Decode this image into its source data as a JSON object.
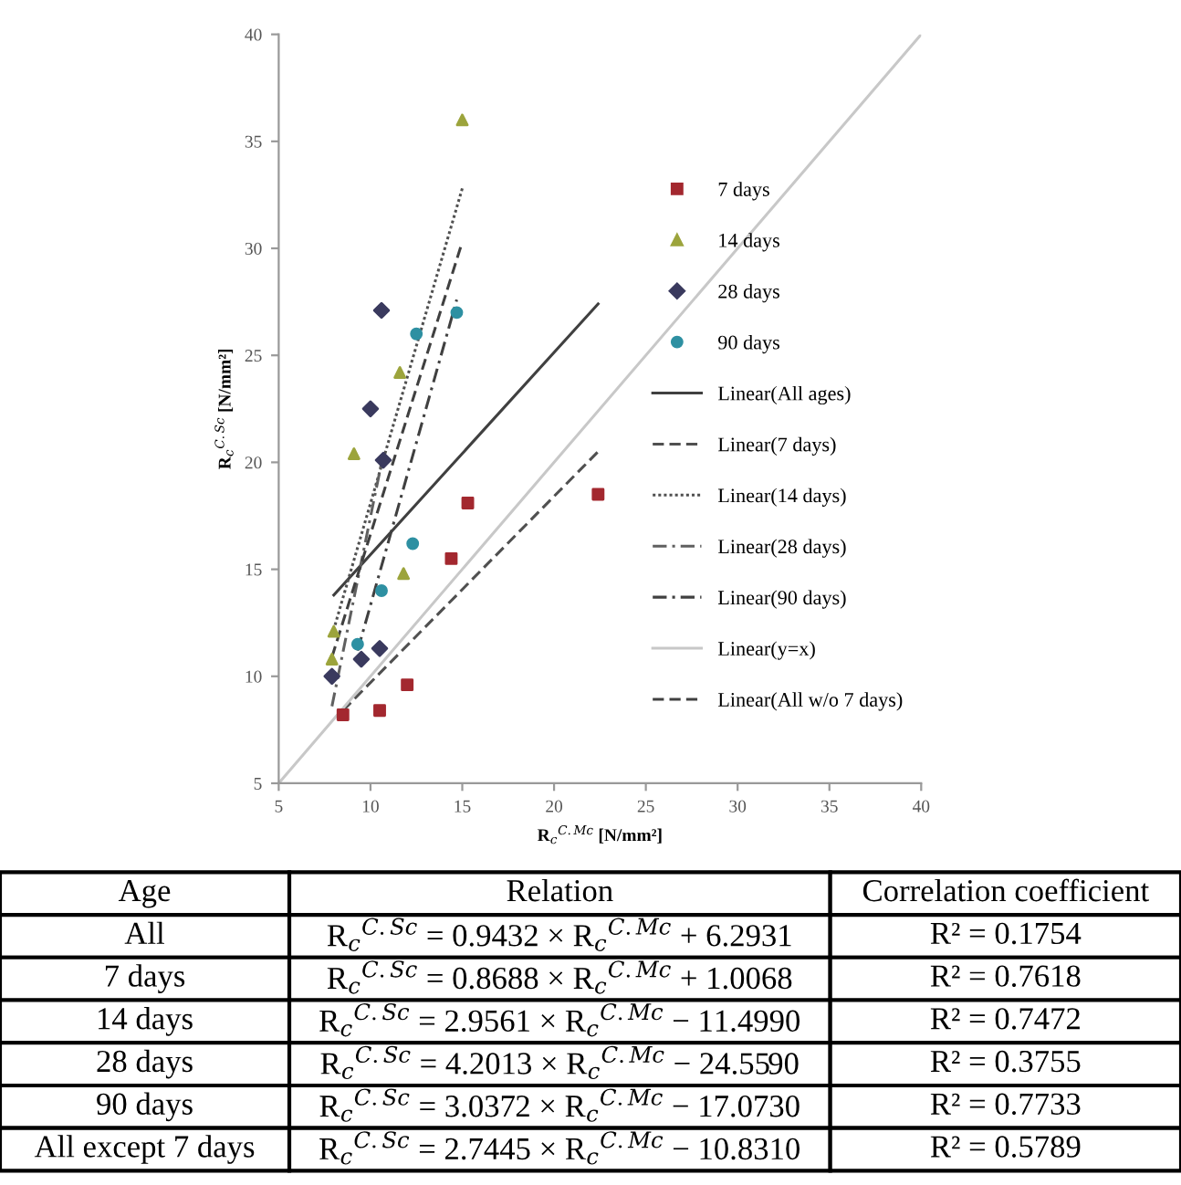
{
  "chart_data": {
    "type": "scatter",
    "xlabel": "R$_{c}$$^{C.Mc}$ [N/mm²]",
    "ylabel": "R$_{c}$$^{C.Sc}$ [N/mm²]",
    "xlim": [
      5,
      40
    ],
    "ylim": [
      5,
      40
    ],
    "xticks": [
      5,
      10,
      15,
      20,
      25,
      30,
      35,
      40
    ],
    "yticks": [
      5,
      10,
      15,
      20,
      25,
      30,
      35,
      40
    ],
    "grid": false,
    "legend": "right",
    "series": [
      {
        "name": "7 days",
        "type": "scatter",
        "marker": "square",
        "color": "#a3282f",
        "x": [
          8.5,
          10.5,
          12.0,
          14.4,
          15.3,
          22.4
        ],
        "values": [
          8.2,
          8.4,
          9.6,
          15.5,
          18.1,
          18.5
        ]
      },
      {
        "name": "14 days",
        "type": "scatter",
        "marker": "triangle",
        "color": "#9ca43c",
        "x": [
          15.0,
          11.6,
          9.1,
          11.8,
          8.0,
          7.9
        ],
        "values": [
          36.0,
          24.2,
          20.4,
          14.8,
          12.1,
          10.8
        ]
      },
      {
        "name": "28 days",
        "type": "scatter",
        "marker": "diamond",
        "color": "#3a3a5e",
        "x": [
          10.6,
          10.0,
          10.7,
          10.5,
          9.5,
          7.9
        ],
        "values": [
          27.1,
          22.5,
          20.1,
          11.3,
          10.8,
          10.0
        ]
      },
      {
        "name": "90 days",
        "type": "scatter",
        "marker": "circle",
        "color": "#2e90a2",
        "x": [
          12.5,
          14.7,
          12.3,
          10.6,
          9.3
        ],
        "values": [
          26.0,
          27.0,
          16.2,
          14.0,
          11.5
        ]
      },
      {
        "name": "Linear(All ages)",
        "type": "line",
        "line_style": "solid",
        "color": "#404040",
        "x": [
          8.0,
          22.4
        ],
        "values": [
          13.8,
          27.4
        ]
      },
      {
        "name": "Linear(7 days)",
        "type": "line",
        "line_style": "dashed",
        "color": "#505050",
        "x": [
          8.5,
          22.4
        ],
        "values": [
          8.4,
          20.5
        ]
      },
      {
        "name": "Linear(14 days)",
        "type": "line",
        "line_style": "dotted",
        "color": "#505050",
        "x": [
          7.9,
          15.0
        ],
        "values": [
          11.9,
          32.8
        ]
      },
      {
        "name": "Linear(28 days)",
        "type": "line",
        "line_style": "dashdot",
        "color": "#606060",
        "x": [
          7.9,
          10.7
        ],
        "values": [
          8.6,
          20.4
        ]
      },
      {
        "name": "Linear(90 days)",
        "type": "line",
        "line_style": "dashdot",
        "color": "#404040",
        "x": [
          9.3,
          14.7
        ],
        "values": [
          11.2,
          27.6
        ]
      },
      {
        "name": "Linear(y=x)",
        "type": "line",
        "line_style": "solid",
        "color": "#c8c8c8",
        "x": [
          5,
          40
        ],
        "values": [
          5,
          40
        ]
      },
      {
        "name": "Linear(All w/o 7 days)",
        "type": "line",
        "line_style": "dashed",
        "color": "#404040",
        "x": [
          7.9,
          15.0
        ],
        "values": [
          10.9,
          30.3
        ]
      }
    ],
    "annotations": [
      "Age",
      "Relation",
      "Correlation coefficient",
      "All",
      "R$_{c}$$^{C.Sc}$ = 0.9432 × R$_{c}$$^{C.Mc}$ + 6.2931",
      "R² = 0.1754",
      "7 days",
      "R$_{c}$$^{C.Sc}$ = 0.8688 × R$_{c}$$^{C.Mc}$ + 1.0068",
      "R² = 0.7618",
      "14 days",
      "R$_{c}$$^{C.Sc}$ = 2.9561 × R$_{c}$$^{C.Mc}$ − 11.4990",
      "R² = 0.7472",
      "28 days",
      "R$_{c}$$^{C.Sc}$ = 4.2013 × R$_{c}$$^{C.Mc}$ − 24.5590",
      "R² = 0.3755",
      "90 days",
      "R$_{c}$$^{C.Sc}$ = 3.0372 × R$_{c}$$^{C.Mc}$ − 17.0730",
      "R² = 0.7733",
      "All except 7 days",
      "R$_{c}$$^{C.Sc}$ = 2.7445 × R$_{c}$$^{C.Mc}$ − 10.8310",
      "R² = 0.5789"
    ]
  }
}
